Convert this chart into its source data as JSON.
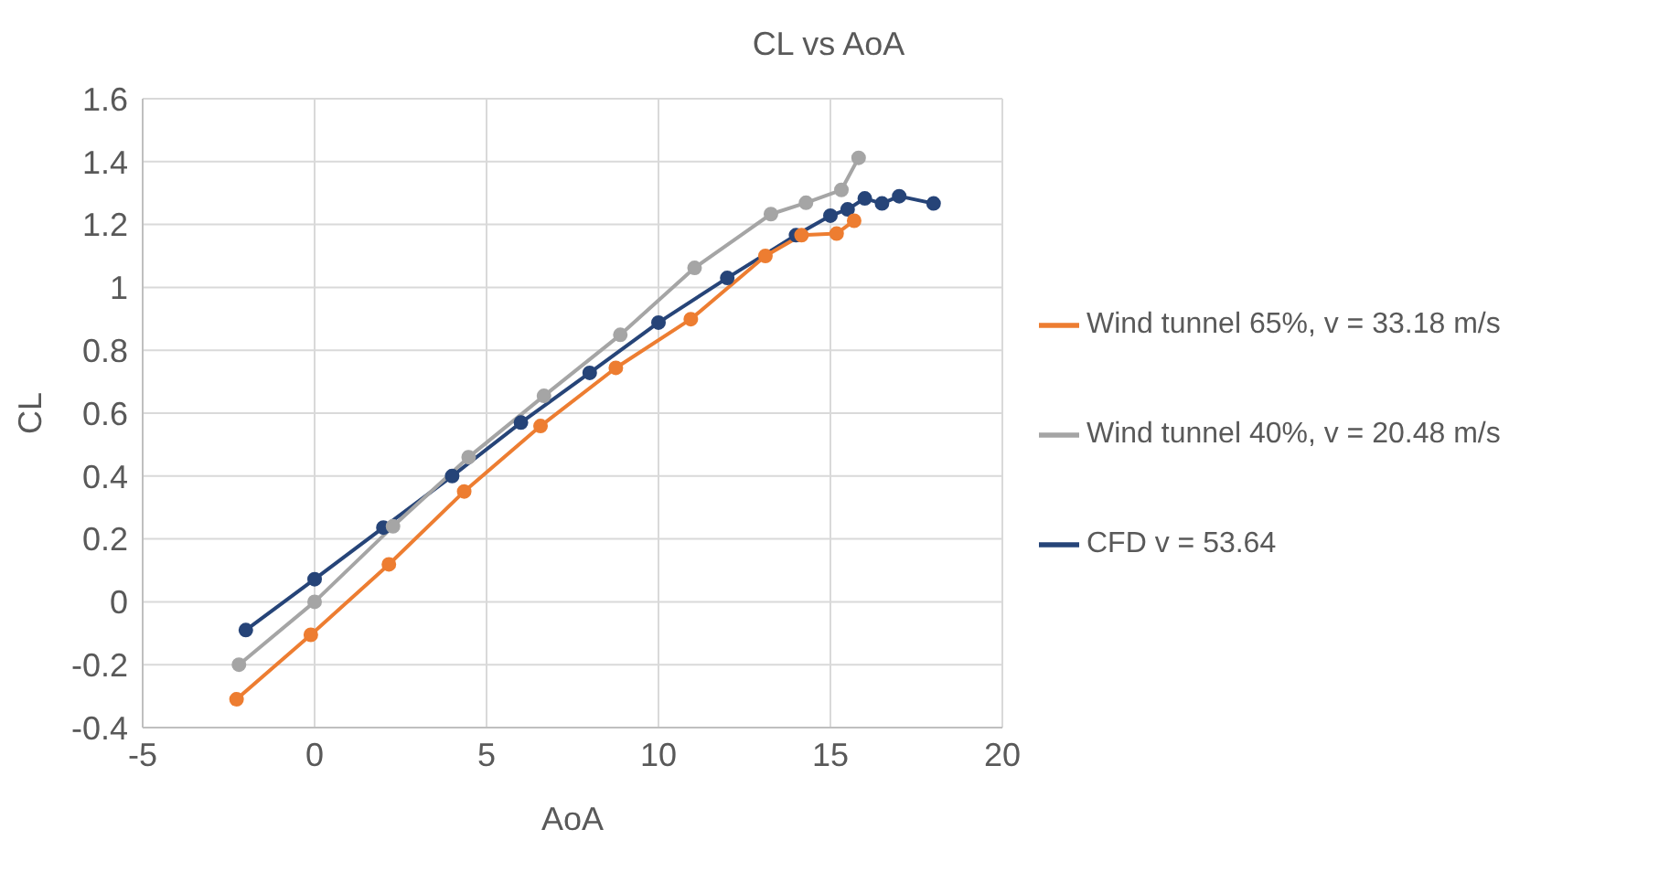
{
  "chart_data": {
    "type": "line",
    "title": "CL vs AoA",
    "xlabel": "AoA",
    "ylabel": "CL",
    "xlim": [
      -5,
      20
    ],
    "xticks": [
      -5,
      0,
      5,
      10,
      15,
      20
    ],
    "ylim": [
      -0.4,
      1.6
    ],
    "yticks": [
      -0.4,
      -0.2,
      0,
      0.2,
      0.4,
      0.6,
      0.8,
      1,
      1.2,
      1.4,
      1.6
    ],
    "grid": true,
    "legend": "right",
    "marker": "circle",
    "line_style": "solid",
    "series": [
      {
        "name": "Wind tunnel 65%, v = 33.18 m/s",
        "color": "#ed7d31",
        "x": [
          -2.27,
          -0.11,
          2.16,
          4.35,
          6.57,
          8.76,
          10.94,
          13.11,
          14.16,
          15.18,
          15.69
        ],
        "values": [
          -0.31,
          -0.105,
          0.119,
          0.351,
          0.559,
          0.744,
          0.899,
          1.1,
          1.166,
          1.171,
          1.212
        ]
      },
      {
        "name": "Wind tunnel 40%, v = 20.48 m/s",
        "color": "#a5a5a5",
        "x": [
          -2.2,
          0,
          2.28,
          4.48,
          6.67,
          8.89,
          11.05,
          13.27,
          14.29,
          15.32,
          15.82
        ],
        "values": [
          -0.2,
          0,
          0.24,
          0.46,
          0.655,
          0.849,
          1.062,
          1.233,
          1.269,
          1.31,
          1.412
        ]
      },
      {
        "name": "CFD v = 53.64",
        "color": "#264478",
        "x": [
          -2,
          0,
          2,
          4,
          6,
          8,
          10,
          12,
          14,
          15,
          15.5,
          16,
          16.5,
          17,
          18
        ],
        "values": [
          -0.09,
          0.072,
          0.236,
          0.4,
          0.57,
          0.728,
          0.888,
          1.03,
          1.166,
          1.228,
          1.248,
          1.283,
          1.267,
          1.29,
          1.267
        ]
      }
    ]
  }
}
